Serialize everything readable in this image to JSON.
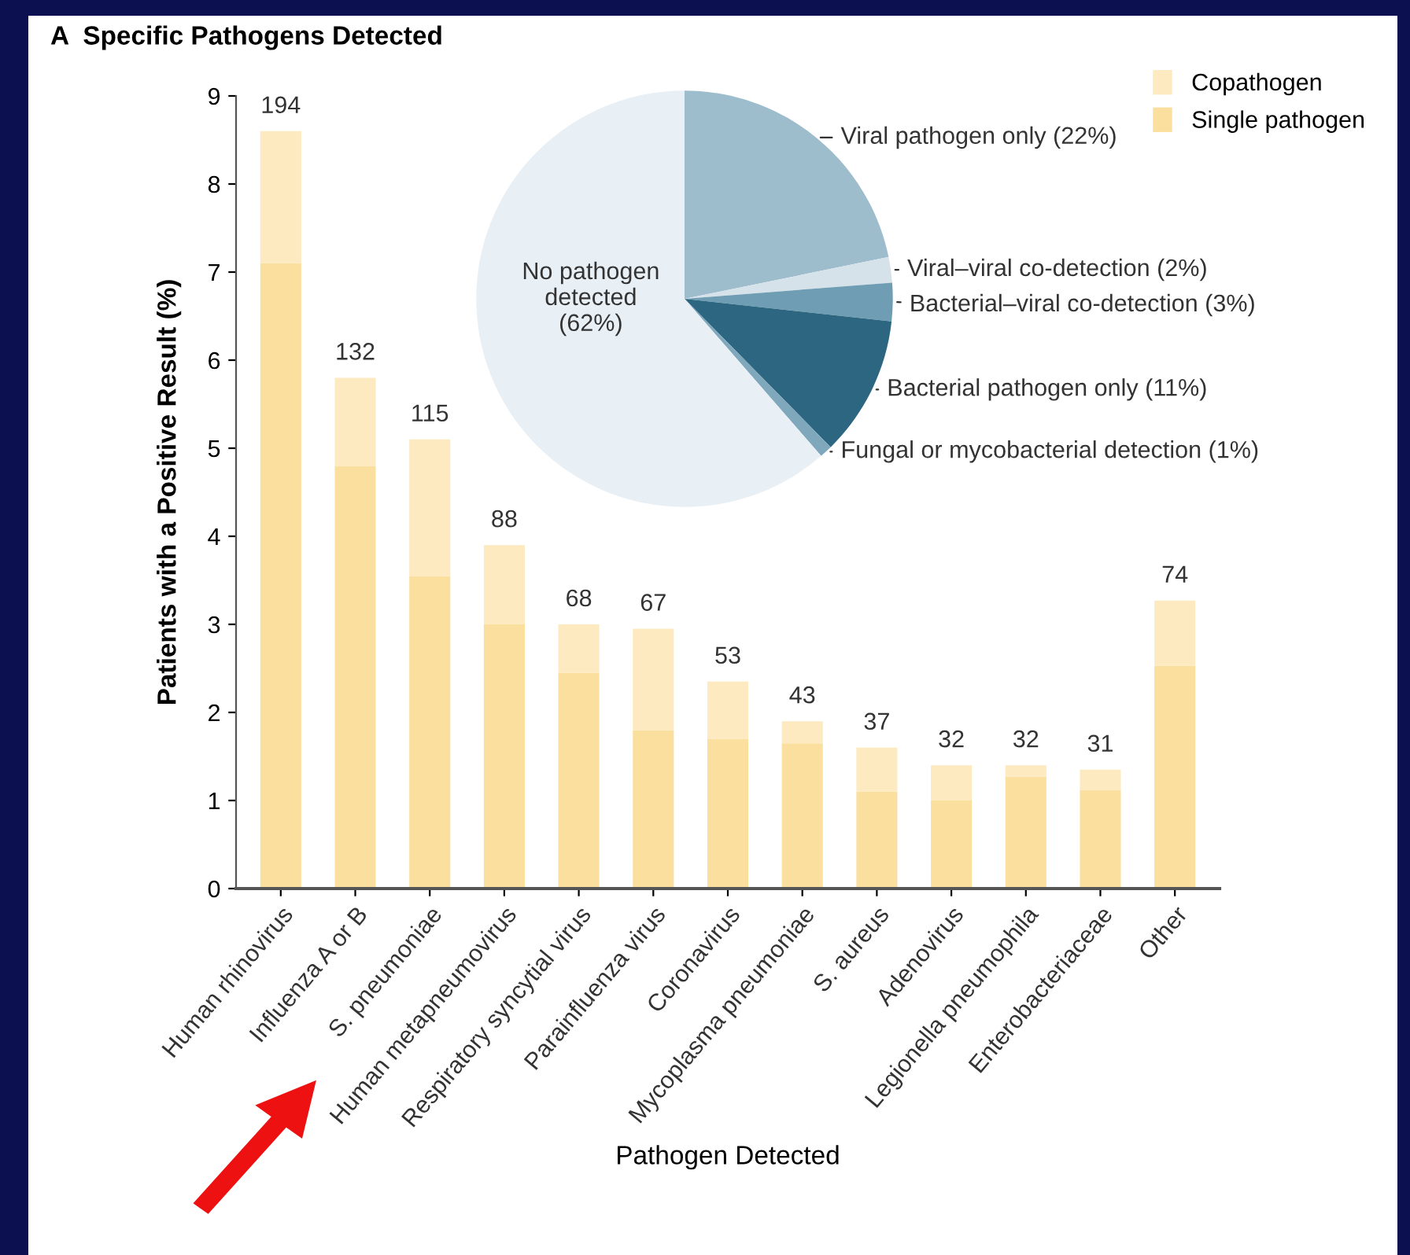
{
  "chart_data": [
    {
      "type": "bar",
      "title": "A  Specific Pathogens Detected",
      "xlabel": "Pathogen Detected",
      "ylabel": "Patients with a Positive Result (%)",
      "categories": [
        "Human rhinovirus",
        "Influenza A or B",
        "S. pneumoniae",
        "Human metapneumovirus",
        "Respiratory syncytial virus",
        "Parainfluenza virus",
        "Coronavirus",
        "Mycoplasma pneumoniae",
        "S. aureus",
        "Adenovirus",
        "Legionella pneumophila",
        "Enterobacteriaceae",
        "Other"
      ],
      "stacked": true,
      "series": [
        {
          "name": "Single pathogen",
          "color": "#fbdf9e",
          "values": [
            7.1,
            4.8,
            3.55,
            3.0,
            2.45,
            1.8,
            1.7,
            1.65,
            1.1,
            1.0,
            1.27,
            1.12,
            2.53
          ]
        },
        {
          "name": "Copathogen",
          "color": "#fdeac0",
          "values": [
            1.5,
            1.0,
            1.55,
            0.9,
            0.55,
            1.15,
            0.65,
            0.25,
            0.5,
            0.4,
            0.13,
            0.23,
            0.74
          ]
        }
      ],
      "annotations": [
        {
          "text": "194",
          "x": "Human rhinovirus",
          "y": 8.6
        },
        {
          "text": "132",
          "x": "Influenza A or B",
          "y": 5.8
        },
        {
          "text": "115",
          "x": "S. pneumoniae",
          "y": 5.1
        },
        {
          "text": "88",
          "x": "Human metapneumovirus",
          "y": 3.9
        },
        {
          "text": "68",
          "x": "Respiratory syncytial virus",
          "y": 3.0
        },
        {
          "text": "67",
          "x": "Parainfluenza virus",
          "y": 2.95
        },
        {
          "text": "53",
          "x": "Coronavirus",
          "y": 2.35
        },
        {
          "text": "43",
          "x": "Mycoplasma pneumoniae",
          "y": 1.9
        },
        {
          "text": "37",
          "x": "S. aureus",
          "y": 1.6
        },
        {
          "text": "32",
          "x": "Adenovirus",
          "y": 1.4
        },
        {
          "text": "32",
          "x": "Legionella pneumophila",
          "y": 1.4
        },
        {
          "text": "31",
          "x": "Enterobacteriaceae",
          "y": 1.35
        },
        {
          "text": "74",
          "x": "Other",
          "y": 3.27
        }
      ],
      "ylim": [
        0,
        9
      ],
      "yticks": [
        0,
        1,
        2,
        3,
        4,
        5,
        6,
        7,
        8,
        9
      ],
      "grid": false,
      "legend": "top right"
    },
    {
      "type": "pie",
      "categories": [
        "Viral pathogen only (22%)",
        "Viral–viral co-detection (2%)",
        "Bacterial–viral co-detection (3%)",
        "Bacterial pathogen only (11%)",
        "Fungal or mycobacterial detection (1%)",
        "No pathogen\ndetected\n(62%)"
      ],
      "values": [
        22,
        2,
        3,
        11,
        1,
        62
      ],
      "colors": [
        "#9dbccc",
        "#d6e2ea",
        "#6f9db4",
        "#2d6680",
        "#7fa8bc",
        "#e8eff5"
      ]
    }
  ]
}
